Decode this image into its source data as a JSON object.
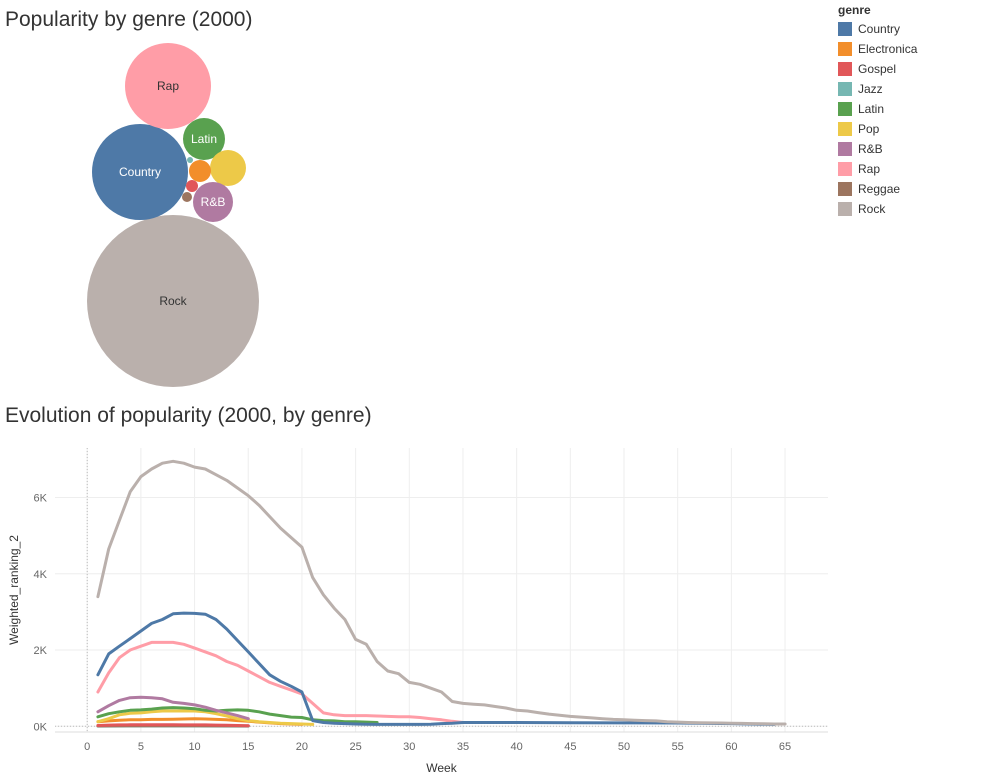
{
  "colors": {
    "Country": "#4e79a7",
    "Electronica": "#f28e2b",
    "Gospel": "#e15759",
    "Jazz": "#76b7b2",
    "Latin": "#59a14f",
    "Pop": "#edc948",
    "R&B": "#b07aa1",
    "Rap": "#ff9da7",
    "Reggae": "#9c755f",
    "Rock": "#bab0ac"
  },
  "legend": {
    "title": "genre",
    "items": [
      "Country",
      "Electronica",
      "Gospel",
      "Jazz",
      "Latin",
      "Pop",
      "R&B",
      "Rap",
      "Reggae",
      "Rock"
    ]
  },
  "chart_data": [
    {
      "type": "bubble",
      "title": "Popularity by genre (2000)",
      "bubbles": [
        {
          "genre": "Rock",
          "label": "Rock",
          "label_color": "#333333"
        },
        {
          "genre": "Country",
          "label": "Country",
          "label_color": "#ffffff"
        },
        {
          "genre": "Rap",
          "label": "Rap",
          "label_color": "#333333"
        },
        {
          "genre": "Latin",
          "label": "Latin",
          "label_color": "#ffffff"
        },
        {
          "genre": "Pop",
          "label": "",
          "label_color": "#333333"
        },
        {
          "genre": "R&B",
          "label": "R&B",
          "label_color": "#ffffff"
        },
        {
          "genre": "Electronica",
          "label": "",
          "label_color": "#333333"
        },
        {
          "genre": "Gospel",
          "label": "",
          "label_color": "#333333"
        },
        {
          "genre": "Reggae",
          "label": "",
          "label_color": "#333333"
        },
        {
          "genre": "Jazz",
          "label": "",
          "label_color": "#333333"
        }
      ]
    },
    {
      "type": "line",
      "title": "Evolution of popularity (2000, by genre)",
      "xlabel": "Week",
      "ylabel": "Weighted_ranking_2",
      "xlim": [
        -3,
        69
      ],
      "ylim": [
        -150,
        7300
      ],
      "xticks": [
        0,
        5,
        10,
        15,
        20,
        25,
        30,
        35,
        40,
        45,
        50,
        55,
        60,
        65
      ],
      "yticks": [
        {
          "value": 0,
          "label": "0K"
        },
        {
          "value": 2000,
          "label": "2K"
        },
        {
          "value": 4000,
          "label": "4K"
        },
        {
          "value": 6000,
          "label": "6K"
        }
      ],
      "grid": true,
      "series": [
        {
          "name": "Rock",
          "points": [
            [
              1,
              3400
            ],
            [
              2,
              4650
            ],
            [
              3,
              5400
            ],
            [
              4,
              6150
            ],
            [
              5,
              6550
            ],
            [
              6,
              6750
            ],
            [
              7,
              6900
            ],
            [
              8,
              6950
            ],
            [
              9,
              6900
            ],
            [
              10,
              6800
            ],
            [
              11,
              6750
            ],
            [
              12,
              6600
            ],
            [
              13,
              6450
            ],
            [
              14,
              6250
            ],
            [
              15,
              6050
            ],
            [
              16,
              5800
            ],
            [
              17,
              5500
            ],
            [
              18,
              5200
            ],
            [
              19,
              4950
            ],
            [
              20,
              4700
            ],
            [
              21,
              3900
            ],
            [
              22,
              3450
            ],
            [
              23,
              3100
            ],
            [
              24,
              2800
            ],
            [
              25,
              2280
            ],
            [
              26,
              2150
            ],
            [
              27,
              1700
            ],
            [
              28,
              1450
            ],
            [
              29,
              1380
            ],
            [
              30,
              1150
            ],
            [
              31,
              1100
            ],
            [
              32,
              1000
            ],
            [
              33,
              900
            ],
            [
              34,
              650
            ],
            [
              35,
              600
            ],
            [
              36,
              580
            ],
            [
              37,
              560
            ],
            [
              38,
              520
            ],
            [
              39,
              480
            ],
            [
              40,
              420
            ],
            [
              41,
              400
            ],
            [
              42,
              360
            ],
            [
              43,
              320
            ],
            [
              44,
              290
            ],
            [
              45,
              260
            ],
            [
              46,
              240
            ],
            [
              47,
              220
            ],
            [
              48,
              200
            ],
            [
              49,
              180
            ],
            [
              50,
              170
            ],
            [
              51,
              160
            ],
            [
              52,
              150
            ],
            [
              53,
              140
            ],
            [
              54,
              120
            ],
            [
              55,
              110
            ],
            [
              56,
              100
            ],
            [
              57,
              95
            ],
            [
              58,
              90
            ],
            [
              59,
              85
            ],
            [
              60,
              80
            ],
            [
              61,
              75
            ],
            [
              62,
              70
            ],
            [
              63,
              65
            ],
            [
              64,
              60
            ],
            [
              65,
              60
            ]
          ]
        },
        {
          "name": "Country",
          "points": [
            [
              1,
              1350
            ],
            [
              2,
              1900
            ],
            [
              3,
              2100
            ],
            [
              4,
              2300
            ],
            [
              5,
              2500
            ],
            [
              6,
              2700
            ],
            [
              7,
              2800
            ],
            [
              8,
              2950
            ],
            [
              9,
              2970
            ],
            [
              10,
              2960
            ],
            [
              11,
              2940
            ],
            [
              12,
              2800
            ],
            [
              13,
              2550
            ],
            [
              14,
              2250
            ],
            [
              15,
              1950
            ],
            [
              16,
              1650
            ],
            [
              17,
              1350
            ],
            [
              18,
              1180
            ],
            [
              19,
              1050
            ],
            [
              20,
              900
            ],
            [
              21,
              150
            ],
            [
              22,
              100
            ],
            [
              23,
              80
            ],
            [
              24,
              70
            ],
            [
              25,
              60
            ],
            [
              26,
              55
            ],
            [
              27,
              50
            ],
            [
              28,
              50
            ],
            [
              29,
              50
            ],
            [
              30,
              50
            ],
            [
              31,
              50
            ],
            [
              32,
              55
            ],
            [
              33,
              70
            ],
            [
              34,
              80
            ],
            [
              35,
              100
            ],
            [
              40,
              100
            ],
            [
              45,
              95
            ],
            [
              50,
              90
            ],
            [
              55,
              85
            ],
            [
              60,
              70
            ],
            [
              64,
              50
            ]
          ]
        },
        {
          "name": "Rap",
          "points": [
            [
              1,
              900
            ],
            [
              2,
              1400
            ],
            [
              3,
              1800
            ],
            [
              4,
              2000
            ],
            [
              5,
              2100
            ],
            [
              6,
              2200
            ],
            [
              7,
              2200
            ],
            [
              8,
              2200
            ],
            [
              9,
              2150
            ],
            [
              10,
              2050
            ],
            [
              11,
              1950
            ],
            [
              12,
              1850
            ],
            [
              13,
              1700
            ],
            [
              14,
              1600
            ],
            [
              15,
              1450
            ],
            [
              16,
              1300
            ],
            [
              17,
              1150
            ],
            [
              18,
              1050
            ],
            [
              19,
              950
            ],
            [
              20,
              850
            ],
            [
              21,
              600
            ],
            [
              22,
              350
            ],
            [
              23,
              300
            ],
            [
              24,
              280
            ],
            [
              25,
              280
            ],
            [
              26,
              280
            ],
            [
              27,
              270
            ],
            [
              28,
              260
            ],
            [
              29,
              250
            ],
            [
              30,
              250
            ],
            [
              31,
              230
            ],
            [
              32,
              200
            ],
            [
              33,
              170
            ],
            [
              34,
              130
            ],
            [
              35,
              100
            ]
          ]
        },
        {
          "name": "R&B",
          "points": [
            [
              1,
              380
            ],
            [
              2,
              540
            ],
            [
              3,
              680
            ],
            [
              4,
              750
            ],
            [
              5,
              760
            ],
            [
              6,
              750
            ],
            [
              7,
              720
            ],
            [
              8,
              630
            ],
            [
              9,
              600
            ],
            [
              10,
              560
            ],
            [
              11,
              500
            ],
            [
              12,
              420
            ],
            [
              13,
              350
            ],
            [
              14,
              280
            ],
            [
              15,
              200
            ]
          ]
        },
        {
          "name": "Latin",
          "points": [
            [
              1,
              250
            ],
            [
              2,
              330
            ],
            [
              3,
              380
            ],
            [
              4,
              420
            ],
            [
              5,
              430
            ],
            [
              6,
              450
            ],
            [
              7,
              480
            ],
            [
              8,
              490
            ],
            [
              9,
              480
            ],
            [
              10,
              460
            ],
            [
              11,
              420
            ],
            [
              12,
              400
            ],
            [
              13,
              420
            ],
            [
              14,
              430
            ],
            [
              15,
              420
            ],
            [
              16,
              380
            ],
            [
              17,
              320
            ],
            [
              18,
              280
            ],
            [
              19,
              240
            ],
            [
              20,
              230
            ],
            [
              21,
              170
            ],
            [
              22,
              150
            ],
            [
              23,
              140
            ],
            [
              24,
              120
            ],
            [
              25,
              120
            ],
            [
              26,
              110
            ],
            [
              27,
              100
            ]
          ]
        },
        {
          "name": "Pop",
          "points": [
            [
              1,
              120
            ],
            [
              2,
              200
            ],
            [
              3,
              300
            ],
            [
              4,
              340
            ],
            [
              5,
              350
            ],
            [
              6,
              380
            ],
            [
              7,
              400
            ],
            [
              8,
              400
            ],
            [
              9,
              400
            ],
            [
              10,
              400
            ],
            [
              11,
              380
            ],
            [
              12,
              330
            ],
            [
              13,
              270
            ],
            [
              14,
              200
            ],
            [
              15,
              150
            ],
            [
              16,
              120
            ],
            [
              17,
              100
            ],
            [
              18,
              80
            ],
            [
              19,
              70
            ],
            [
              20,
              60
            ],
            [
              21,
              50
            ]
          ]
        },
        {
          "name": "Electronica",
          "points": [
            [
              1,
              120
            ],
            [
              2,
              140
            ],
            [
              3,
              160
            ],
            [
              4,
              170
            ],
            [
              5,
              170
            ],
            [
              6,
              180
            ],
            [
              7,
              180
            ],
            [
              8,
              185
            ],
            [
              9,
              190
            ],
            [
              10,
              195
            ],
            [
              11,
              190
            ],
            [
              12,
              180
            ],
            [
              13,
              170
            ],
            [
              14,
              150
            ],
            [
              15,
              130
            ],
            [
              16,
              110
            ],
            [
              17,
              90
            ],
            [
              18,
              70
            ],
            [
              19,
              60
            ],
            [
              20,
              50
            ]
          ]
        },
        {
          "name": "Gospel",
          "points": [
            [
              1,
              20
            ],
            [
              2,
              30
            ],
            [
              3,
              35
            ],
            [
              4,
              40
            ],
            [
              5,
              40
            ],
            [
              6,
              40
            ],
            [
              7,
              40
            ],
            [
              8,
              40
            ],
            [
              9,
              35
            ],
            [
              10,
              35
            ],
            [
              11,
              35
            ],
            [
              12,
              30
            ],
            [
              13,
              25
            ],
            [
              14,
              20
            ],
            [
              15,
              15
            ]
          ]
        },
        {
          "name": "Reggae",
          "points": [
            [
              1,
              10
            ],
            [
              5,
              15
            ],
            [
              10,
              15
            ],
            [
              15,
              10
            ]
          ]
        },
        {
          "name": "Jazz",
          "points": [
            [
              1,
              5
            ],
            [
              5,
              8
            ],
            [
              10,
              8
            ],
            [
              15,
              5
            ]
          ]
        }
      ]
    }
  ]
}
